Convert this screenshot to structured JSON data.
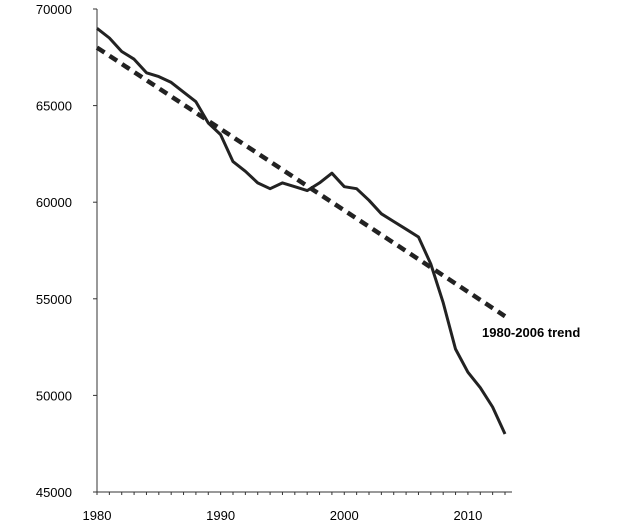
{
  "chart_data": {
    "type": "line",
    "title": "",
    "xlabel": "",
    "ylabel": "",
    "xlim": [
      1980,
      2013
    ],
    "ylim": [
      45000,
      70000
    ],
    "x_ticks": [
      "1980",
      "1990",
      "2000",
      "2010"
    ],
    "y_ticks": [
      "45000",
      "50000",
      "55000",
      "60000",
      "65000",
      "70000"
    ],
    "grid": false,
    "legend": "none",
    "annotation": "1980-2006 trend",
    "series": [
      {
        "style": "solid",
        "color": "#222222",
        "x": [
          1980,
          1981,
          1982,
          1983,
          1984,
          1985,
          1986,
          1987,
          1988,
          1989,
          1990,
          1991,
          1992,
          1993,
          1994,
          1995,
          1996,
          1997,
          1998,
          1999,
          2000,
          2001,
          2002,
          2003,
          2004,
          2005,
          2006,
          2007,
          2008,
          2009,
          2010,
          2011,
          2012,
          2013
        ],
        "values": [
          69000,
          68500,
          67800,
          67400,
          66700,
          66500,
          66200,
          65700,
          65200,
          64100,
          63500,
          62100,
          61600,
          61000,
          60700,
          61000,
          60800,
          60600,
          61000,
          61500,
          60800,
          60700,
          60100,
          59400,
          59000,
          58600,
          58200,
          56800,
          54800,
          52400,
          51200,
          50400,
          49400,
          48000
        ]
      },
      {
        "style": "dashed",
        "color": "#222222",
        "x": [
          1980,
          2013
        ],
        "values": [
          68000,
          54100
        ]
      }
    ]
  }
}
